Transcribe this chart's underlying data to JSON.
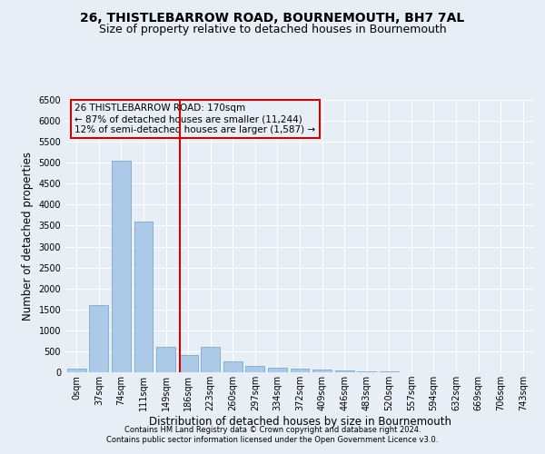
{
  "title1": "26, THISTLEBARROW ROAD, BOURNEMOUTH, BH7 7AL",
  "title2": "Size of property relative to detached houses in Bournemouth",
  "xlabel": "Distribution of detached houses by size in Bournemouth",
  "ylabel": "Number of detached properties",
  "footer1": "Contains HM Land Registry data © Crown copyright and database right 2024.",
  "footer2": "Contains public sector information licensed under the Open Government Licence v3.0.",
  "bin_labels": [
    "0sqm",
    "37sqm",
    "74sqm",
    "111sqm",
    "149sqm",
    "186sqm",
    "223sqm",
    "260sqm",
    "297sqm",
    "334sqm",
    "372sqm",
    "409sqm",
    "446sqm",
    "483sqm",
    "520sqm",
    "557sqm",
    "594sqm",
    "632sqm",
    "669sqm",
    "706sqm",
    "743sqm"
  ],
  "bar_values": [
    80,
    1600,
    5050,
    3600,
    600,
    420,
    600,
    260,
    150,
    100,
    80,
    55,
    40,
    30,
    20,
    10,
    8,
    5,
    5,
    5,
    0
  ],
  "bar_color": "#adc9e8",
  "bar_edge_color": "#6a9ec5",
  "property_line_x": 4.62,
  "property_line_color": "#cc0000",
  "annotation_text": "26 THISTLEBARROW ROAD: 170sqm\n← 87% of detached houses are smaller (11,244)\n12% of semi-detached houses are larger (1,587) →",
  "annotation_box_color": "#cc0000",
  "ylim": [
    0,
    6500
  ],
  "yticks": [
    0,
    500,
    1000,
    1500,
    2000,
    2500,
    3000,
    3500,
    4000,
    4500,
    5000,
    5500,
    6000,
    6500
  ],
  "bg_color": "#e8eef5",
  "grid_color": "#ffffff",
  "title_fontsize": 10,
  "subtitle_fontsize": 9,
  "axis_label_fontsize": 8.5,
  "tick_fontsize": 7,
  "footer_fontsize": 6,
  "annot_fontsize": 7.5
}
